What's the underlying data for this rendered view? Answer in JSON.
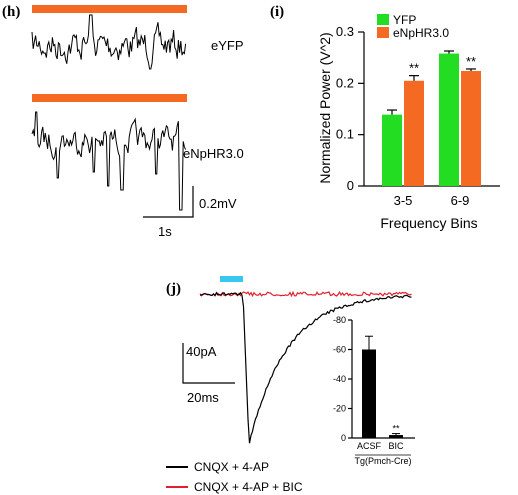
{
  "colors": {
    "yfp": "#22dd22",
    "enphr": "#f46a22",
    "light_bar": "#f46a22",
    "blue_bar": "#38c7f0",
    "bic_trace": "#e02030",
    "cnqx_trace": "#000000",
    "error_bar": "#000000"
  },
  "panel_h": {
    "label": "(h)",
    "trace_top_label": "eYFP",
    "trace_bottom_label": "eNpHR3.0",
    "scale_y_label": "0.2mV",
    "scale_x_label": "1s"
  },
  "panel_j": {
    "label": "(j)",
    "scale_y_label": "40pA",
    "scale_x_label": "20ms",
    "legend": [
      {
        "label": "CNQX + 4-AP",
        "color": "#000000"
      },
      {
        "label": "CNQX + 4-AP + BIC",
        "color": "#e02030"
      }
    ]
  },
  "chart_data": [
    {
      "panel": "(i)",
      "type": "bar",
      "title": "",
      "xlabel": "Frequency Bins",
      "ylabel": "Normalized Power (V^2)",
      "ylim": [
        0,
        0.3
      ],
      "yticks": [
        "0",
        "0.1",
        "0.2",
        "0.3"
      ],
      "categories": [
        "3-5",
        "6-9"
      ],
      "series": [
        {
          "name": "YFP",
          "color": "#22dd22",
          "values": [
            0.139,
            0.258
          ],
          "errors": [
            0.009,
            0.005
          ]
        },
        {
          "name": "eNpHR3.0",
          "color": "#f46a22",
          "values": [
            0.205,
            0.224
          ],
          "errors": [
            0.01,
            0.004
          ]
        }
      ],
      "annotations": [
        "**",
        "**"
      ],
      "legend_position": "top-left",
      "grid": false
    },
    {
      "panel": "(j) inset",
      "type": "bar",
      "title": "",
      "xlabel": "Tg(Pmch-Cre)",
      "ylabel": "",
      "ylim": [
        0,
        -80
      ],
      "yticks": [
        "0",
        "-20",
        "-40",
        "-60",
        "-80"
      ],
      "categories": [
        "ACSF",
        "BIC"
      ],
      "values": [
        -60,
        -2
      ],
      "errors": [
        9,
        1
      ],
      "bar_color": "#000000",
      "annotations": [
        "",
        "**"
      ],
      "grid": false
    }
  ]
}
